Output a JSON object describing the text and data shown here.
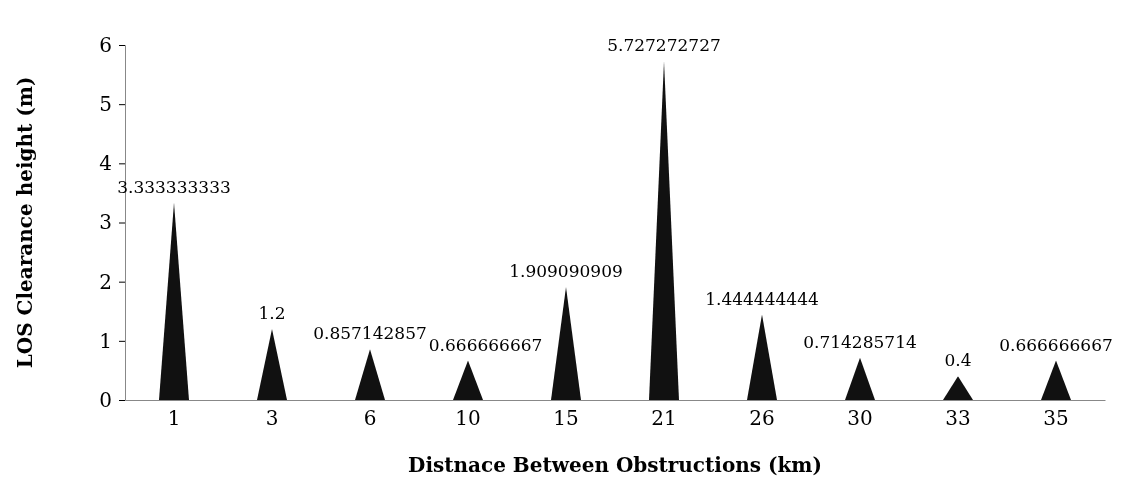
{
  "chart_data": {
    "type": "bar",
    "xlabel": "Distnace Between Obstructions (km)",
    "ylabel": "LOS Clearance height (m)",
    "categories": [
      "1",
      "3",
      "6",
      "10",
      "15",
      "21",
      "26",
      "30",
      "33",
      "35"
    ],
    "values": [
      3.333333333,
      1.2,
      0.857142857,
      0.666666667,
      1.909090909,
      5.727272727,
      1.444444444,
      0.714285714,
      0.4,
      0.666666667
    ],
    "color": "#111111",
    "ylim": [
      0,
      6
    ],
    "yticks": [
      0,
      1,
      2,
      3,
      4,
      5,
      6
    ],
    "data_labels": true
  }
}
